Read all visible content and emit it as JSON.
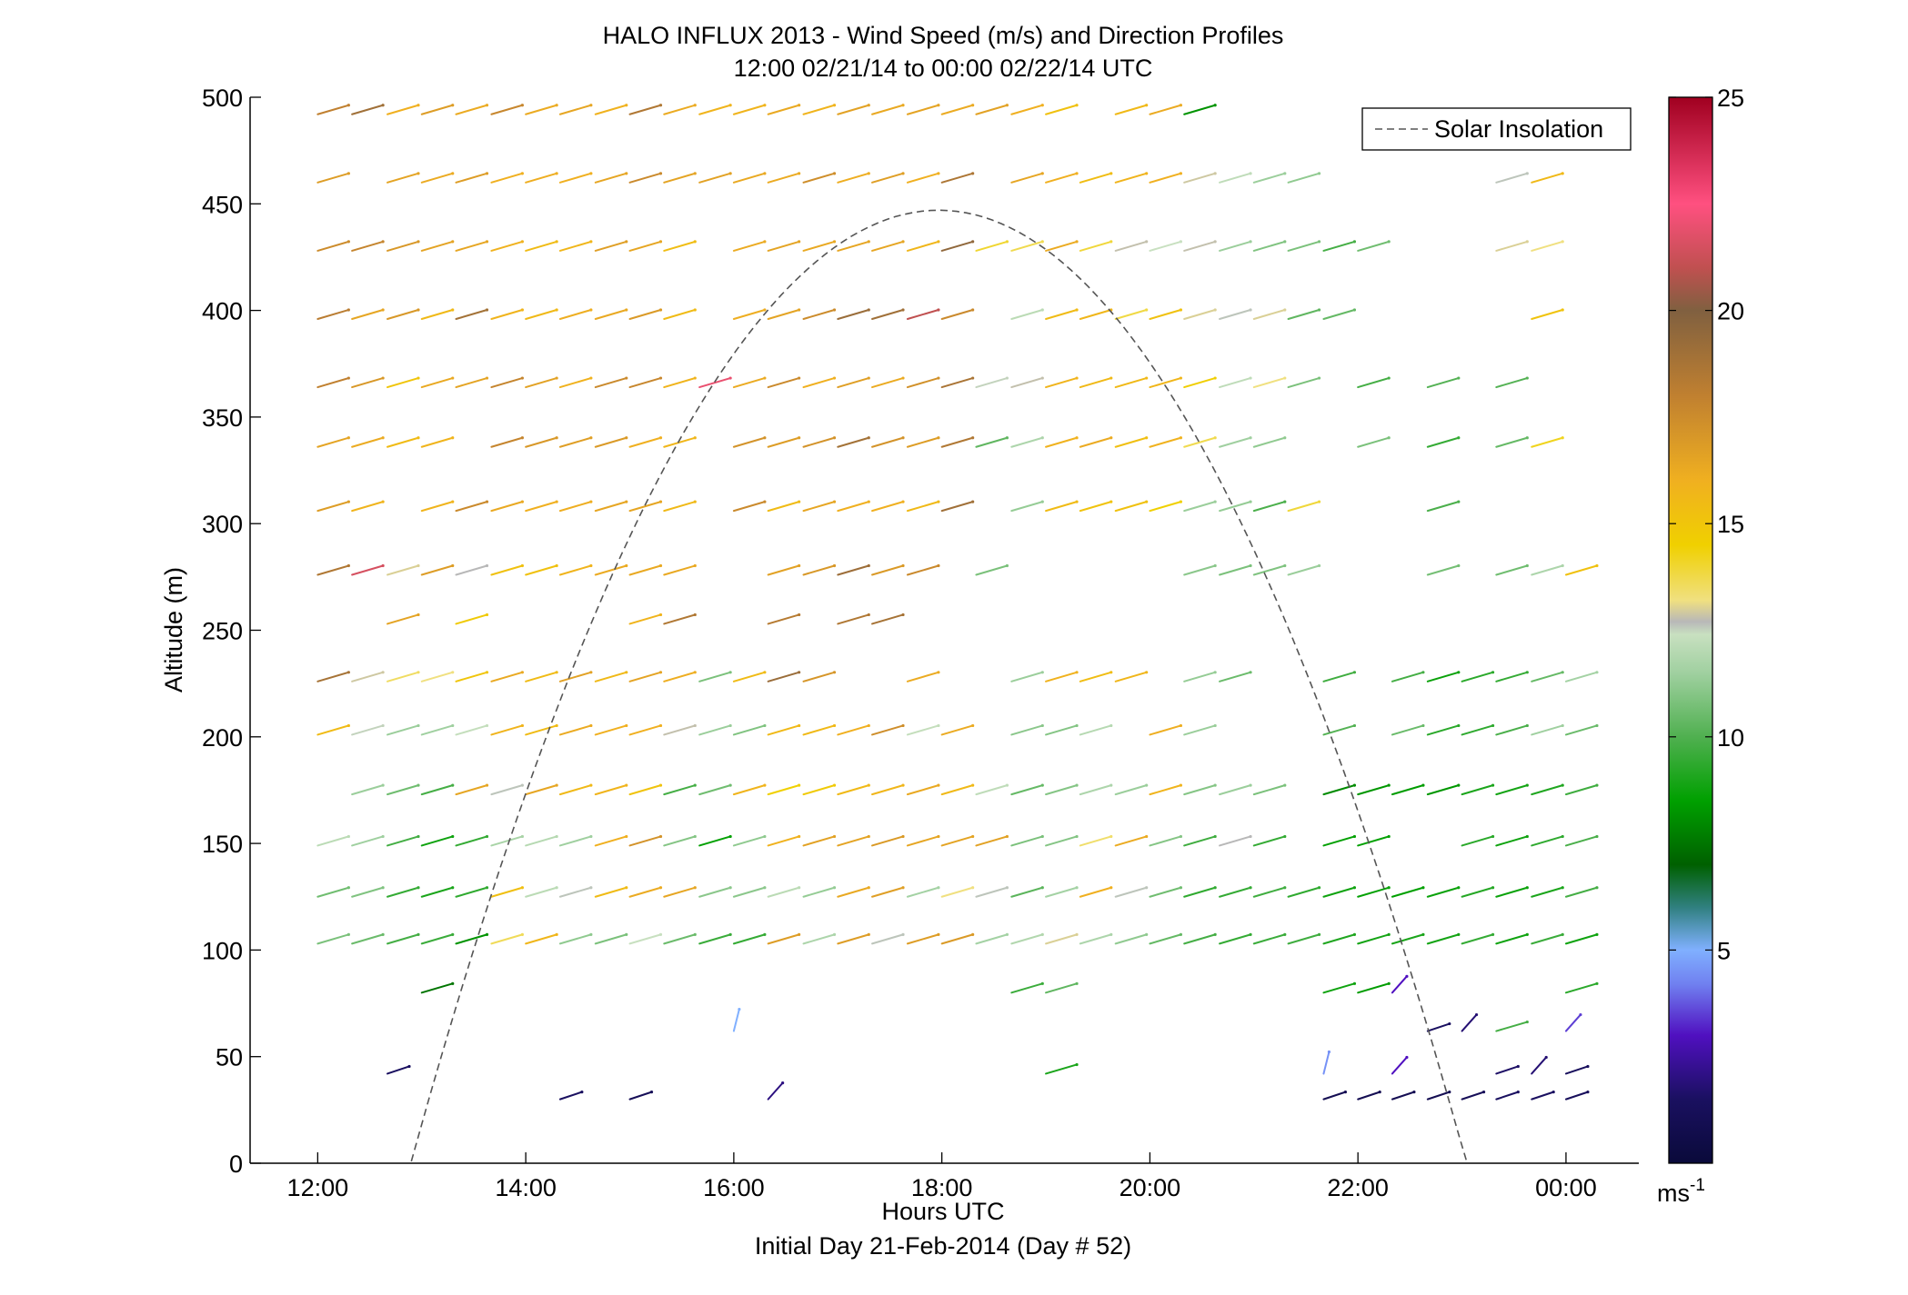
{
  "chart_data": {
    "type": "vector-profile",
    "title": "HALO INFLUX 2013 - Wind Speed (m/s) and Direction Profiles",
    "subtitle": "12:00 02/21/14 to 00:00 02/22/14  UTC",
    "xlabel": "Hours UTC",
    "ylabel": "Altitude (m)",
    "footer": "Initial Day 21-Feb-2014 (Day # 52)",
    "xlim_hours": [
      11.35,
      24.7
    ],
    "ylim": [
      0,
      500
    ],
    "x_ticks": [
      {
        "value": 12,
        "label": "12:00"
      },
      {
        "value": 14,
        "label": "14:00"
      },
      {
        "value": 16,
        "label": "16:00"
      },
      {
        "value": 18,
        "label": "18:00"
      },
      {
        "value": 20,
        "label": "20:00"
      },
      {
        "value": 22,
        "label": "22:00"
      },
      {
        "value": 24,
        "label": "00:00"
      }
    ],
    "y_ticks": [
      0,
      50,
      100,
      150,
      200,
      250,
      300,
      350,
      400,
      450,
      500
    ],
    "legend": {
      "placement": "top-right",
      "label": "Solar Insolation"
    },
    "colorbar": {
      "range": [
        0,
        25
      ],
      "ticks": [
        5,
        10,
        15,
        20,
        25
      ],
      "unit_label": "ms",
      "unit_exponent": "-1",
      "stops": [
        {
          "value": 0.0,
          "color": "#0a0a3a"
        },
        {
          "value": 1.5,
          "color": "#1a1060"
        },
        {
          "value": 3.0,
          "color": "#5010c0"
        },
        {
          "value": 4.2,
          "color": "#7080f0"
        },
        {
          "value": 5.0,
          "color": "#80b0ff"
        },
        {
          "value": 6.0,
          "color": "#308080"
        },
        {
          "value": 7.0,
          "color": "#006000"
        },
        {
          "value": 8.5,
          "color": "#00a000"
        },
        {
          "value": 10.0,
          "color": "#50b050"
        },
        {
          "value": 11.5,
          "color": "#a0d0a0"
        },
        {
          "value": 12.4,
          "color": "#c8e0c0"
        },
        {
          "value": 12.7,
          "color": "#b8b8b8"
        },
        {
          "value": 13.2,
          "color": "#f0e080"
        },
        {
          "value": 14.5,
          "color": "#f0d000"
        },
        {
          "value": 16.0,
          "color": "#f0b020"
        },
        {
          "value": 18.0,
          "color": "#c08030"
        },
        {
          "value": 20.0,
          "color": "#806040"
        },
        {
          "value": 21.0,
          "color": "#c05050"
        },
        {
          "value": 22.5,
          "color": "#ff5080"
        },
        {
          "value": 25.0,
          "color": "#a00020"
        }
      ]
    },
    "solar_insolation": {
      "start_hour": 12.9,
      "end_hour": 23.05,
      "peak_hour": 17.97,
      "peak_altitude": 447
    },
    "altitudes": [
      30,
      42,
      62,
      80,
      103,
      125,
      149,
      173,
      201,
      226,
      253,
      276,
      306,
      336,
      364,
      396,
      428,
      460,
      492
    ],
    "profile_times": [
      12.0,
      12.33,
      12.67,
      13.0,
      13.33,
      13.67,
      14.0,
      14.33,
      14.67,
      15.0,
      15.33,
      15.67,
      16.0,
      16.33,
      16.67,
      17.0,
      17.33,
      17.67,
      18.0,
      18.33,
      18.67,
      19.0,
      19.33,
      19.67,
      20.0,
      20.33,
      20.67,
      21.0,
      21.33,
      21.67,
      22.0,
      22.33,
      22.67,
      23.0,
      23.33,
      23.67,
      24.0
    ],
    "profiles": [
      {
        "hour": 12.0,
        "speed": [
          null,
          null,
          null,
          null,
          10.8,
          10.6,
          12.1,
          null,
          15.5,
          18.8,
          null,
          18.5,
          16.8,
          16.5,
          18.0,
          18.2,
          17.5,
          16.8,
          18.0
        ]
      },
      {
        "hour": 12.33,
        "speed": [
          null,
          null,
          null,
          null,
          10.5,
          10.9,
          11.5,
          11.4,
          12.5,
          12.9,
          null,
          21.5,
          15.8,
          16.2,
          17.0,
          16.4,
          17.8,
          null,
          19.0
        ]
      },
      {
        "hour": 12.67,
        "speed": [
          null,
          1.5,
          null,
          null,
          9.8,
          9.5,
          9.8,
          10.6,
          11.4,
          13.5,
          16.5,
          13.0,
          null,
          15.5,
          15.0,
          17.0,
          17.0,
          16.5,
          16.0
        ]
      },
      {
        "hour": 13.0,
        "speed": [
          null,
          null,
          null,
          7.5,
          9.6,
          9.0,
          8.8,
          9.8,
          11.5,
          13.2,
          null,
          16.8,
          15.8,
          15.8,
          16.3,
          15.6,
          16.5,
          16.2,
          16.8
        ]
      },
      {
        "hour": 13.33,
        "speed": [
          null,
          null,
          null,
          null,
          8.2,
          9.4,
          9.5,
          16.4,
          12.3,
          15.0,
          14.8,
          12.7,
          17.6,
          null,
          16.5,
          18.9,
          16.4,
          16.8,
          16.2
        ]
      },
      {
        "hour": 13.67,
        "speed": [
          null,
          null,
          null,
          null,
          13.6,
          15.3,
          11.7,
          12.6,
          15.8,
          16.3,
          null,
          15.2,
          16.3,
          17.8,
          17.8,
          15.8,
          15.9,
          16.0,
          17.7
        ]
      },
      {
        "hour": 14.0,
        "speed": [
          null,
          null,
          null,
          null,
          15.7,
          12.1,
          12.0,
          16.4,
          15.5,
          15.5,
          null,
          15.2,
          16.0,
          17.0,
          16.6,
          15.6,
          15.5,
          16.1,
          16.2
        ]
      },
      {
        "hour": 14.33,
        "speed": [
          1.5,
          null,
          null,
          null,
          11.2,
          12.6,
          11.5,
          15.6,
          16.2,
          16.6,
          null,
          15.8,
          16.1,
          16.7,
          15.9,
          16.1,
          15.7,
          16.0,
          16.4
        ]
      },
      {
        "hour": 14.67,
        "speed": [
          null,
          null,
          null,
          null,
          10.8,
          15.5,
          16.0,
          15.8,
          16.0,
          15.6,
          null,
          16.2,
          16.4,
          16.9,
          17.6,
          16.3,
          16.7,
          16.4,
          15.9
        ]
      },
      {
        "hour": 15.0,
        "speed": [
          1.2,
          null,
          null,
          null,
          12.4,
          16.2,
          17.2,
          15.1,
          16.0,
          16.5,
          15.8,
          16.3,
          16.4,
          16.0,
          17.7,
          16.9,
          16.4,
          17.6,
          18.5
        ]
      },
      {
        "hour": 15.33,
        "speed": [
          null,
          null,
          null,
          null,
          10.5,
          16.4,
          11.0,
          9.8,
          12.8,
          16.1,
          18.5,
          16.3,
          15.6,
          15.7,
          15.8,
          15.5,
          15.4,
          16.5,
          16.2
        ]
      },
      {
        "hour": 15.67,
        "speed": [
          null,
          null,
          null,
          null,
          9.6,
          11.1,
          8.6,
          10.6,
          11.4,
          10.8,
          null,
          null,
          null,
          null,
          22.0,
          null,
          null,
          16.6,
          15.8
        ]
      },
      {
        "hour": 16.0,
        "speed": [
          null,
          null,
          5.0,
          null,
          9.5,
          11.1,
          11.2,
          15.8,
          10.9,
          15.5,
          null,
          null,
          17.6,
          17.2,
          16.2,
          16.1,
          16.2,
          16.3,
          15.8
        ]
      },
      {
        "hour": 16.33,
        "speed": [
          2.0,
          null,
          null,
          null,
          16.8,
          12.1,
          15.9,
          14.5,
          15.6,
          19.2,
          18.3,
          16.6,
          15.5,
          16.8,
          17.6,
          16.5,
          16.5,
          16.2,
          16.3
        ]
      },
      {
        "hour": 16.67,
        "speed": [
          null,
          null,
          null,
          null,
          11.8,
          11.3,
          16.6,
          14.8,
          15.6,
          17.1,
          null,
          17.0,
          16.4,
          17.2,
          16.0,
          17.5,
          16.3,
          17.4,
          15.8
        ]
      },
      {
        "hour": 17.0,
        "speed": [
          null,
          null,
          null,
          null,
          16.8,
          16.3,
          16.5,
          15.6,
          16.0,
          null,
          18.5,
          19.1,
          16.0,
          18.9,
          16.7,
          19.2,
          16.4,
          16.1,
          16.6
        ]
      },
      {
        "hour": 17.33,
        "speed": [
          null,
          null,
          null,
          null,
          12.6,
          16.7,
          16.9,
          15.7,
          17.4,
          null,
          18.8,
          16.9,
          16.0,
          17.2,
          16.2,
          19.0,
          16.4,
          16.7,
          16.3
        ]
      },
      {
        "hour": 17.67,
        "speed": [
          null,
          null,
          null,
          null,
          16.8,
          11.6,
          16.4,
          16.3,
          12.3,
          16.2,
          null,
          17.6,
          15.6,
          16.8,
          17.3,
          21.0,
          15.7,
          16.0,
          16.5
        ]
      },
      {
        "hour": 18.0,
        "speed": [
          null,
          null,
          null,
          null,
          16.9,
          13.2,
          16.5,
          15.6,
          16.2,
          null,
          null,
          null,
          19.0,
          18.5,
          18.7,
          17.6,
          19.5,
          18.6,
          16.2
        ]
      },
      {
        "hour": 18.33,
        "speed": [
          null,
          null,
          null,
          null,
          11.6,
          12.6,
          16.6,
          12.2,
          null,
          null,
          null,
          10.8,
          null,
          10.3,
          12.5,
          null,
          14.0,
          null,
          16.6
        ]
      },
      {
        "hour": 18.67,
        "speed": [
          null,
          null,
          null,
          9.6,
          11.9,
          10.2,
          10.8,
          10.4,
          11.1,
          11.4,
          null,
          null,
          11.3,
          11.8,
          12.8,
          12.1,
          13.7,
          16.4,
          16.0
        ]
      },
      {
        "hour": 19.0,
        "speed": [
          null,
          9.0,
          null,
          10.3,
          13.0,
          11.6,
          11.0,
          11.0,
          11.0,
          15.9,
          null,
          null,
          15.5,
          15.9,
          15.8,
          15.5,
          16.2,
          16.0,
          15.2
        ]
      },
      {
        "hour": 19.33,
        "speed": [
          null,
          null,
          null,
          null,
          11.8,
          16.0,
          13.4,
          11.8,
          12.0,
          15.4,
          null,
          null,
          15.1,
          16.2,
          15.6,
          15.7,
          13.9,
          15.4,
          null
        ]
      },
      {
        "hour": 19.67,
        "speed": [
          null,
          null,
          null,
          null,
          11.2,
          12.6,
          16.2,
          11.4,
          null,
          15.7,
          null,
          null,
          15.2,
          15.3,
          15.6,
          13.8,
          12.8,
          15.8,
          15.6
        ]
      },
      {
        "hour": 20.0,
        "speed": [
          null,
          null,
          null,
          null,
          10.4,
          10.6,
          11.0,
          15.8,
          16.1,
          null,
          null,
          null,
          14.5,
          15.9,
          15.7,
          15.2,
          12.4,
          16.0,
          16.2
        ]
      },
      {
        "hour": 20.33,
        "speed": [
          null,
          null,
          null,
          null,
          9.8,
          9.4,
          9.7,
          11.0,
          11.4,
          11.3,
          null,
          11.1,
          11.4,
          13.7,
          14.6,
          13.0,
          12.8,
          12.9,
          8.2
        ]
      },
      {
        "hour": 20.67,
        "speed": [
          null,
          null,
          null,
          null,
          9.5,
          9.5,
          12.7,
          11.4,
          null,
          10.5,
          null,
          10.8,
          11.3,
          11.5,
          12.2,
          12.6,
          11.4,
          12.2,
          null
        ]
      },
      {
        "hour": 21.0,
        "speed": [
          null,
          null,
          null,
          null,
          9.6,
          9.7,
          9.5,
          10.8,
          null,
          null,
          null,
          10.9,
          9.9,
          11.2,
          13.2,
          13.0,
          10.9,
          11.4,
          null
        ]
      },
      {
        "hour": 21.33,
        "speed": [
          null,
          null,
          null,
          null,
          9.7,
          9.4,
          null,
          null,
          null,
          null,
          null,
          11.4,
          13.9,
          null,
          10.8,
          10.3,
          10.8,
          11.2,
          null
        ]
      },
      {
        "hour": 21.67,
        "speed": [
          1.0,
          4.5,
          null,
          8.8,
          9.1,
          8.8,
          8.6,
          8.0,
          10.1,
          9.7,
          null,
          null,
          null,
          null,
          null,
          10.4,
          9.8,
          null,
          null
        ]
      },
      {
        "hour": 22.0,
        "speed": [
          1.0,
          null,
          null,
          8.4,
          8.9,
          8.6,
          8.6,
          8.3,
          null,
          null,
          null,
          null,
          null,
          10.8,
          9.8,
          null,
          10.6,
          null,
          null
        ]
      },
      {
        "hour": 22.33,
        "speed": [
          1.0,
          3.0,
          null,
          3.0,
          9.0,
          8.5,
          null,
          8.4,
          10.5,
          9.8,
          null,
          null,
          null,
          null,
          null,
          null,
          null,
          null,
          null
        ]
      },
      {
        "hour": 22.67,
        "speed": [
          1.0,
          null,
          1.5,
          null,
          8.9,
          8.7,
          null,
          8.3,
          9.3,
          8.7,
          null,
          10.7,
          9.9,
          9.5,
          10.1,
          null,
          null,
          null,
          null
        ]
      },
      {
        "hour": 23.0,
        "speed": [
          1.2,
          null,
          1.8,
          null,
          9.5,
          9.2,
          9.3,
          9.0,
          9.4,
          9.3,
          null,
          null,
          null,
          null,
          null,
          null,
          null,
          null,
          null
        ]
      },
      {
        "hour": 23.33,
        "speed": [
          1.5,
          1.6,
          9.8,
          null,
          8.8,
          8.7,
          8.8,
          8.9,
          9.9,
          9.5,
          null,
          10.6,
          null,
          10.4,
          10.1,
          null,
          13.0,
          12.6,
          null
        ]
      },
      {
        "hour": 23.67,
        "speed": [
          1.5,
          1.8,
          null,
          null,
          9.6,
          9.0,
          9.4,
          9.1,
          11.5,
          10.4,
          null,
          11.8,
          null,
          14.2,
          null,
          15.1,
          13.2,
          15.6,
          null
        ]
      },
      {
        "hour": 24.0,
        "speed": [
          1.3,
          1.4,
          3.5,
          9.3,
          8.8,
          9.8,
          9.9,
          9.7,
          10.5,
          11.6,
          null,
          15.2,
          null,
          null,
          null,
          null,
          null,
          null,
          null
        ]
      }
    ]
  }
}
